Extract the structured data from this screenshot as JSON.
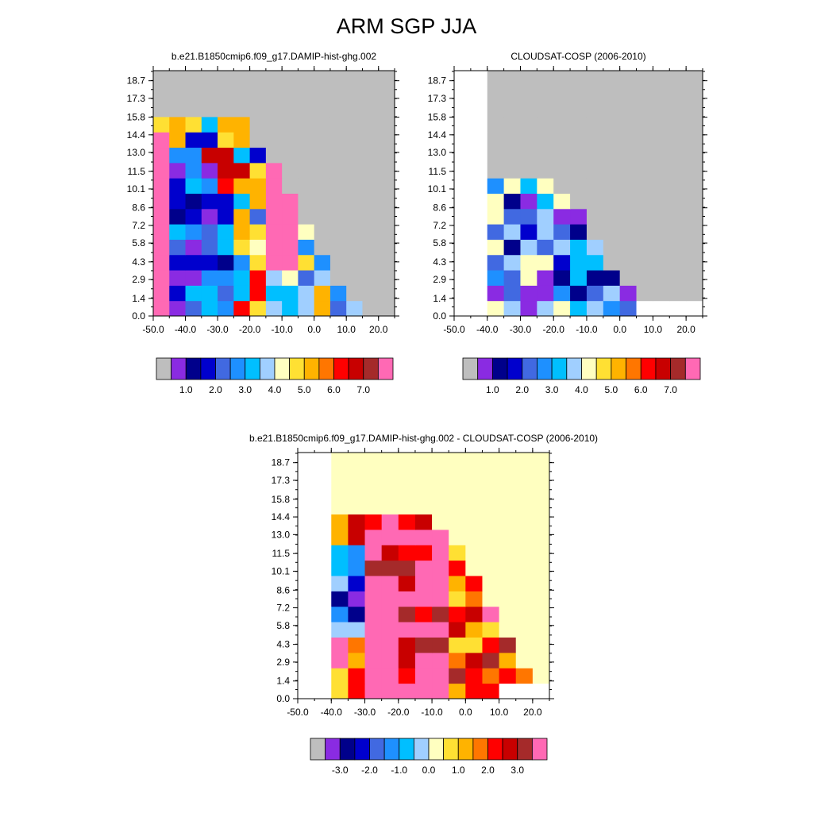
{
  "title": "ARM SGP JJA",
  "colors": {
    "palette": [
      "#bebebe",
      "#8a2be2",
      "#00008b",
      "#0000cd",
      "#4169e1",
      "#1e90ff",
      "#00bfff",
      "#a0cfff",
      "#ffffc0",
      "#ffe033",
      "#ffb300",
      "#ff7600",
      "#ff0000",
      "#c80000",
      "#a52a2a",
      "#ff69b4"
    ],
    "background_top": "#bebebe",
    "background_diff": "#ffffc0"
  },
  "chart_data": [
    {
      "type": "heatmap",
      "title": "b.e21.B1850cmip6.f09_g17.DAMIP-hist-ghg.002",
      "xlabel": "",
      "ylabel": "",
      "x_range": [
        -50,
        25
      ],
      "y_range": [
        0,
        19.5
      ],
      "x_ticklabels": [
        "-50.0",
        "-40.0",
        "-30.0",
        "-20.0",
        "-10.0",
        "0.0",
        "10.0",
        "20.0"
      ],
      "y_ticklabels": [
        "0.0",
        "1.4",
        "2.9",
        "4.3",
        "5.8",
        "7.2",
        "8.6",
        "10.1",
        "11.5",
        "13.0",
        "14.4",
        "15.8",
        "17.3",
        "18.7"
      ],
      "colorbar_labels": [
        "1.0",
        "2.0",
        "3.0",
        "4.0",
        "5.0",
        "6.0",
        "7.0"
      ],
      "grid": false
    },
    {
      "type": "heatmap",
      "title": "CLOUDSAT-COSP (2006-2010)",
      "xlabel": "",
      "ylabel": "",
      "x_range": [
        -50,
        25
      ],
      "y_range": [
        0,
        19.5
      ],
      "x_ticklabels": [
        "-50.0",
        "-40.0",
        "-30.0",
        "-20.0",
        "-10.0",
        "0.0",
        "10.0",
        "20.0"
      ],
      "y_ticklabels": [
        "0.0",
        "1.4",
        "2.9",
        "4.3",
        "5.8",
        "7.2",
        "8.6",
        "10.1",
        "11.5",
        "13.0",
        "14.4",
        "15.8",
        "17.3",
        "18.7"
      ],
      "colorbar_labels": [
        "1.0",
        "2.0",
        "3.0",
        "4.0",
        "5.0",
        "6.0",
        "7.0"
      ],
      "grid": false
    },
    {
      "type": "heatmap",
      "title": "b.e21.B1850cmip6.f09_g17.DAMIP-hist-ghg.002 - CLOUDSAT-COSP (2006-2010)",
      "xlabel": "",
      "ylabel": "",
      "x_range": [
        -50,
        25
      ],
      "y_range": [
        0,
        19.5
      ],
      "x_ticklabels": [
        "-50.0",
        "-40.0",
        "-30.0",
        "-20.0",
        "-10.0",
        "0.0",
        "10.0",
        "20.0"
      ],
      "y_ticklabels": [
        "0.0",
        "1.4",
        "2.9",
        "4.3",
        "5.8",
        "7.2",
        "8.6",
        "10.1",
        "11.5",
        "13.0",
        "14.4",
        "15.8",
        "17.3",
        "18.7"
      ],
      "colorbar_labels": [
        "-3.0",
        "-2.0",
        "-1.0",
        "0.0",
        "1.0",
        "2.0",
        "3.0"
      ],
      "grid": false
    }
  ]
}
